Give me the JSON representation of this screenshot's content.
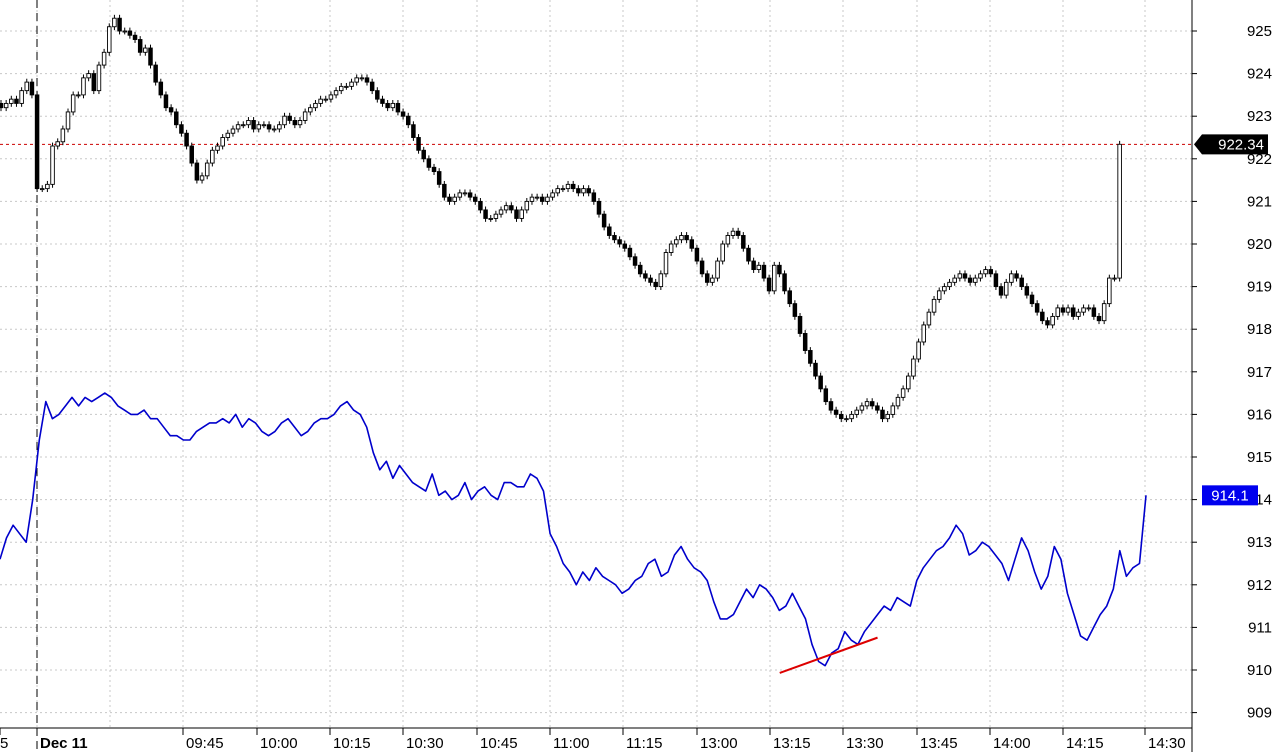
{
  "chart_data": {
    "type": "candlestick",
    "title": "",
    "xlabel": "",
    "ylabel": "",
    "ylim": [
      908.5,
      926
    ],
    "y_ticks": [
      909,
      910,
      911,
      912,
      913,
      914,
      915,
      916,
      917,
      918,
      919,
      920,
      921,
      922,
      923,
      924,
      925
    ],
    "grid": true,
    "date_label": "Dec 11",
    "x_labels": [
      "5",
      "09:45",
      "10:00",
      "10:15",
      "10:30",
      "10:45",
      "11:00",
      "11:15",
      "13:00",
      "13:15",
      "13:30",
      "13:45",
      "14:00",
      "14:15",
      "14:30"
    ],
    "last_price": "922.34",
    "last_price_value": 922.34,
    "indicator_value": "914.1",
    "indicator_value_level": 914.1,
    "colors": {
      "price": "#000000",
      "indicator": "#0000cc",
      "reference_line": "#cc0000",
      "trend_line": "#dd0000",
      "grid": "#c8c8c8",
      "last_price_tag": "#000000",
      "indicator_tag": "#0000ee"
    },
    "price_series": {
      "name": "",
      "close": [
        923.2,
        923.3,
        923.4,
        923.3,
        923.6,
        923.8,
        923.5,
        921.3,
        921.3,
        921.4,
        922.3,
        922.4,
        922.7,
        923.1,
        923.5,
        923.5,
        923.9,
        924,
        923.6,
        924.2,
        924.5,
        925.1,
        925.3,
        925,
        925,
        924.9,
        924.8,
        924.5,
        924.6,
        924.2,
        923.8,
        923.5,
        923.2,
        923.1,
        922.8,
        922.6,
        922.3,
        921.9,
        921.5,
        921.6,
        921.9,
        922.2,
        922.3,
        922.5,
        922.6,
        922.7,
        922.8,
        922.8,
        922.9,
        922.7,
        922.8,
        922.8,
        922.7,
        922.7,
        922.8,
        923,
        922.9,
        922.8,
        922.9,
        923.1,
        923.2,
        923.3,
        923.4,
        923.4,
        923.5,
        923.6,
        923.7,
        923.7,
        923.8,
        923.9,
        923.9,
        923.8,
        923.6,
        923.4,
        923.3,
        923.2,
        923.3,
        923.1,
        923,
        922.8,
        922.5,
        922.2,
        922,
        921.8,
        921.7,
        921.4,
        921.1,
        921,
        921.1,
        921.2,
        921.2,
        921.1,
        921,
        920.8,
        920.6,
        920.6,
        920.7,
        920.8,
        920.9,
        920.8,
        920.6,
        920.8,
        921,
        921.1,
        921.1,
        921,
        921.1,
        921.2,
        921.3,
        921.3,
        921.4,
        921.3,
        921.2,
        921.3,
        921.2,
        921,
        920.7,
        920.4,
        920.2,
        920.1,
        920,
        919.9,
        919.7,
        919.5,
        919.3,
        919.2,
        919.1,
        919,
        919.3,
        919.8,
        920,
        920.1,
        920.2,
        920.1,
        919.9,
        919.6,
        919.3,
        919.1,
        919.2,
        919.6,
        920,
        920.2,
        920.3,
        920.2,
        919.9,
        919.6,
        919.4,
        919.5,
        919.2,
        918.9,
        919.5,
        919.3,
        918.9,
        918.6,
        918.3,
        917.9,
        917.5,
        917.2,
        916.9,
        916.6,
        916.3,
        916.1,
        916,
        915.9,
        915.9,
        916,
        916.1,
        916.2,
        916.3,
        916.2,
        916.1,
        915.9,
        916,
        916.2,
        916.4,
        916.6,
        916.9,
        917.3,
        917.7,
        918.1,
        918.4,
        918.7,
        918.9,
        919,
        919.1,
        919.2,
        919.3,
        919.2,
        919.1,
        919.2,
        919.3,
        919.4,
        919.3,
        919,
        918.8,
        919.1,
        919.3,
        919.2,
        919,
        918.8,
        918.6,
        918.4,
        918.2,
        918.1,
        918.3,
        918.5,
        918.4,
        918.5,
        918.3,
        918.4,
        918.5,
        918.5,
        918.3,
        918.2,
        918.6,
        919.2,
        919.2,
        922.34
      ]
    },
    "indicator_series": {
      "name": "",
      "values": [
        912.6,
        913.1,
        913.4,
        913.2,
        913.0,
        914.0,
        915.4,
        916.3,
        915.9,
        916.0,
        916.2,
        916.4,
        916.2,
        916.4,
        916.3,
        916.4,
        916.5,
        916.4,
        916.2,
        916.1,
        916.0,
        916.0,
        916.1,
        915.9,
        915.9,
        915.7,
        915.5,
        915.5,
        915.4,
        915.4,
        915.6,
        915.7,
        915.8,
        915.8,
        915.9,
        915.8,
        916.0,
        915.7,
        915.9,
        915.8,
        915.6,
        915.5,
        915.6,
        915.8,
        915.9,
        915.7,
        915.5,
        915.6,
        915.8,
        915.9,
        915.9,
        916.0,
        916.2,
        916.3,
        916.1,
        916.0,
        915.7,
        915.1,
        914.7,
        914.9,
        914.5,
        914.8,
        914.6,
        914.4,
        914.3,
        914.2,
        914.6,
        914.1,
        914.2,
        914.0,
        914.1,
        914.4,
        914.0,
        914.2,
        914.3,
        914.1,
        914.0,
        914.4,
        914.4,
        914.3,
        914.3,
        914.6,
        914.5,
        914.2,
        913.2,
        912.9,
        912.5,
        912.3,
        912.0,
        912.3,
        912.1,
        912.4,
        912.2,
        912.1,
        912.0,
        911.8,
        911.9,
        912.1,
        912.2,
        912.5,
        912.6,
        912.2,
        912.3,
        912.7,
        912.9,
        912.6,
        912.4,
        912.3,
        912.1,
        911.6,
        911.2,
        911.2,
        911.3,
        911.6,
        911.9,
        911.7,
        912.0,
        911.9,
        911.7,
        911.4,
        911.5,
        911.8,
        911.5,
        911.2,
        910.6,
        910.2,
        910.1,
        910.4,
        910.5,
        910.9,
        910.7,
        910.6,
        910.9,
        911.1,
        911.3,
        911.5,
        911.4,
        911.7,
        911.6,
        911.5,
        912.1,
        912.4,
        912.6,
        912.8,
        912.9,
        913.1,
        913.4,
        913.2,
        912.7,
        912.8,
        913.0,
        912.9,
        912.7,
        912.5,
        912.1,
        912.6,
        913.1,
        912.8,
        912.3,
        911.9,
        912.2,
        912.9,
        912.6,
        911.8,
        911.3,
        910.8,
        910.7,
        911.0,
        911.3,
        911.5,
        911.9,
        912.8,
        912.2,
        912.4,
        912.5,
        914.1
      ]
    },
    "trend_line": {
      "x": [
        "13:17",
        "13:37"
      ],
      "y": [
        909.93,
        910.76
      ]
    }
  }
}
